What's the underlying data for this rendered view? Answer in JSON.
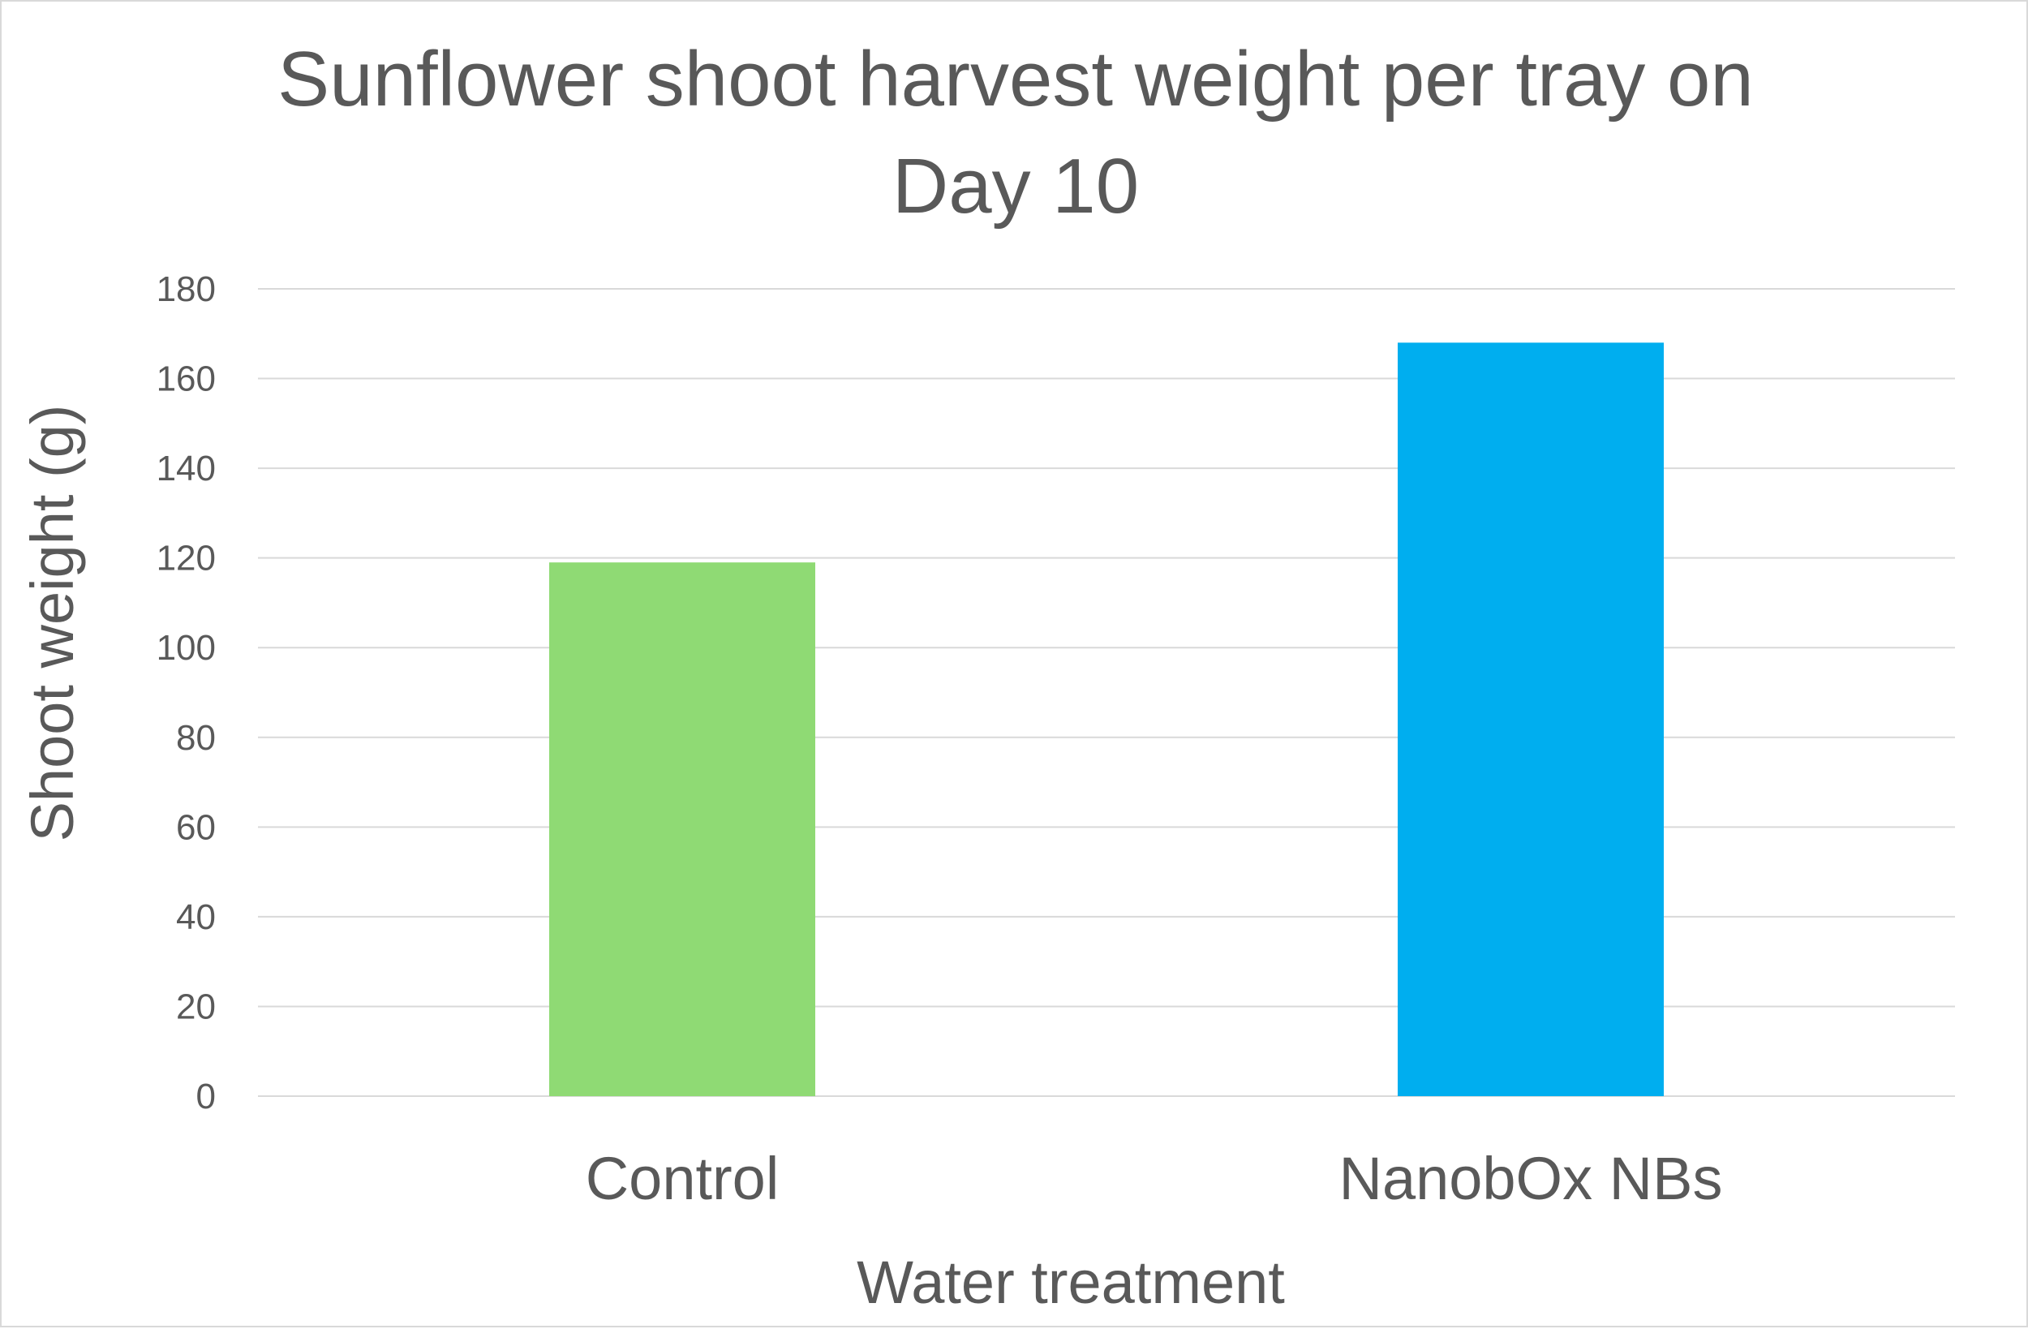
{
  "chart_data": {
    "type": "bar",
    "title_lines": [
      "Sunflower shoot harvest weight per tray on",
      "Day 10"
    ],
    "xlabel": "Water treatment",
    "ylabel": "Shoot weight (g)",
    "categories": [
      "Control",
      "NanobOx NBs"
    ],
    "values": [
      119,
      168
    ],
    "colors": [
      "#8fda74",
      "#00aeef"
    ],
    "ylim": [
      0,
      180
    ],
    "yticks": [
      "0",
      "20",
      "40",
      "60",
      "80",
      "100",
      "120",
      "140",
      "160",
      "180"
    ],
    "grid": true,
    "legend": "none"
  }
}
